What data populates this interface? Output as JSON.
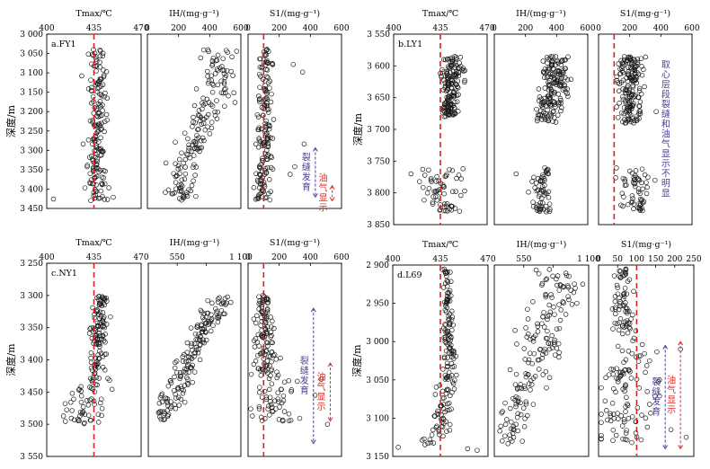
{
  "colors": {
    "frame": "#000000",
    "dash": "#e02020",
    "fracture": "#4a3f8f",
    "oil": "#d9312b",
    "point": "#1a1a1a"
  },
  "chart_data": [
    {
      "type": "scatter",
      "panel_label": "a.FY1",
      "depth_label": "深度/m",
      "depth_ticks": [
        "3 000",
        "3 050",
        "3 100",
        "3 150",
        "3 200",
        "3 250",
        "3 300",
        "3 350",
        "3 400",
        "3 450"
      ],
      "ylim": [
        3000,
        3460
      ],
      "subplots": [
        {
          "xlabel": "Tmax/℃",
          "xlim": [
            400,
            470
          ],
          "ticks": [
            400,
            435,
            470
          ],
          "dashed_at": 435,
          "trend": [
            {
              "y": 3040,
              "x": 437,
              "sx": 3
            },
            {
              "y": 3100,
              "x": 438,
              "sx": 3
            },
            {
              "y": 3200,
              "x": 438,
              "sx": 3
            },
            {
              "y": 3300,
              "x": 437,
              "sx": 3
            },
            {
              "y": 3380,
              "x": 439,
              "sx": 4
            },
            {
              "y": 3440,
              "x": 438,
              "sx": 5
            }
          ],
          "outliers": [
            {
              "x": 426,
              "y": 3110
            },
            {
              "x": 427,
              "y": 3290
            },
            {
              "x": 405,
              "y": 3435
            },
            {
              "x": 430,
              "y": 3350
            }
          ]
        },
        {
          "xlabel": "IH/(mg·g⁻¹)",
          "xlim": [
            0,
            600
          ],
          "ticks": [
            0,
            200,
            400,
            600
          ],
          "trend": [
            {
              "y": 3040,
              "x": 480,
              "sx": 55
            },
            {
              "y": 3150,
              "x": 430,
              "sx": 60
            },
            {
              "y": 3250,
              "x": 340,
              "sx": 60
            },
            {
              "y": 3350,
              "x": 250,
              "sx": 55
            },
            {
              "y": 3440,
              "x": 220,
              "sx": 40
            }
          ],
          "outliers": []
        },
        {
          "xlabel": "S1/(mg·g⁻¹)",
          "xlim": [
            0,
            600
          ],
          "ticks": [
            0,
            200,
            400,
            600
          ],
          "dashed_at": 100,
          "trend": [
            {
              "y": 3040,
              "x": 110,
              "sx": 22
            },
            {
              "y": 3200,
              "x": 110,
              "sx": 25
            },
            {
              "y": 3350,
              "x": 100,
              "sx": 25
            },
            {
              "y": 3440,
              "x": 90,
              "sx": 30
            }
          ],
          "outliers": [
            {
              "x": 290,
              "y": 3080
            },
            {
              "x": 350,
              "y": 3100
            },
            {
              "x": 360,
              "y": 3290
            },
            {
              "x": 300,
              "y": 3350
            },
            {
              "x": 270,
              "y": 3370
            }
          ],
          "annotations": [
            {
              "text": "裂缝发育",
              "kind": "fracture",
              "at": 0.72,
              "from": 3300,
              "to": 3430
            },
            {
              "text": "油气显示",
              "kind": "oil",
              "at": 0.9,
              "from": 3400,
              "to": 3440
            }
          ]
        }
      ]
    },
    {
      "type": "scatter",
      "panel_label": "b.LY1",
      "depth_label": "深度/m",
      "depth_ticks": [
        "3 550",
        "3 600",
        "3 650",
        "3 700",
        "3 750",
        "3 800",
        "3 850"
      ],
      "ylim": [
        3550,
        3850
      ],
      "subplots": [
        {
          "xlabel": "Tmax/℃",
          "xlim": [
            400,
            470
          ],
          "ticks": [
            400,
            435,
            470
          ],
          "dashed_at": 435,
          "trend": [
            {
              "y": 3585,
              "x": 444,
              "sx": 4
            },
            {
              "y": 3630,
              "x": 443,
              "sx": 4
            },
            {
              "y": 3680,
              "x": 442,
              "sx": 3
            }
          ],
          "trend2": [
            {
              "y": 3760,
              "x": 432,
              "sx": 8
            },
            {
              "y": 3800,
              "x": 436,
              "sx": 7
            },
            {
              "y": 3830,
              "x": 440,
              "sx": 5
            }
          ],
          "outliers": [
            {
              "x": 413,
              "y": 3770
            }
          ]
        },
        {
          "xlabel": "IH/(mg·g⁻¹)",
          "xlim": [
            0,
            600
          ],
          "ticks": [
            0,
            200,
            400,
            600
          ],
          "trend": [
            {
              "y": 3585,
              "x": 400,
              "sx": 40
            },
            {
              "y": 3640,
              "x": 390,
              "sx": 45
            },
            {
              "y": 3690,
              "x": 330,
              "sx": 40
            }
          ],
          "trend2": [
            {
              "y": 3760,
              "x": 320,
              "sx": 35
            },
            {
              "y": 3800,
              "x": 300,
              "sx": 40
            },
            {
              "y": 3830,
              "x": 310,
              "sx": 30
            }
          ],
          "outliers": [
            {
              "x": 140,
              "y": 3770
            }
          ]
        },
        {
          "xlabel": "S1/(mg·g⁻¹)",
          "xlim": [
            0,
            600
          ],
          "ticks": [
            0,
            200,
            400,
            600
          ],
          "dashed_at": 100,
          "trend": [
            {
              "y": 3585,
              "x": 210,
              "sx": 40
            },
            {
              "y": 3640,
              "x": 200,
              "sx": 45
            },
            {
              "y": 3690,
              "x": 210,
              "sx": 40
            }
          ],
          "trend2": [
            {
              "y": 3760,
              "x": 210,
              "sx": 40
            },
            {
              "y": 3800,
              "x": 250,
              "sx": 50
            },
            {
              "y": 3830,
              "x": 230,
              "sx": 40
            }
          ],
          "outliers": [
            {
              "x": 370,
              "y": 3672
            }
          ],
          "annotations": [
            {
              "text": "取心层段裂缝和油气显示不明显",
              "kind": "fracture",
              "at": 0.72,
              "vertical_text_only": true
            }
          ]
        }
      ]
    },
    {
      "type": "scatter",
      "panel_label": "c.NY1",
      "depth_label": "深度/m",
      "depth_ticks": [
        "3 250",
        "3 300",
        "3 350",
        "3 400",
        "3 450",
        "3 500",
        "3 550"
      ],
      "ylim": [
        3250,
        3550
      ],
      "subplots": [
        {
          "xlabel": "Tmax/℃",
          "xlim": [
            400,
            470
          ],
          "ticks": [
            400,
            435,
            470
          ],
          "dashed_at": 435,
          "trend": [
            {
              "y": 3300,
              "x": 440,
              "sx": 3
            },
            {
              "y": 3380,
              "x": 439,
              "sx": 3
            },
            {
              "y": 3430,
              "x": 437,
              "sx": 4
            },
            {
              "y": 3480,
              "x": 427,
              "sx": 8
            },
            {
              "y": 3500,
              "x": 425,
              "sx": 8
            }
          ],
          "outliers": []
        },
        {
          "xlabel": "IH/(mg·g⁻¹)",
          "xlim": [
            300,
            1100
          ],
          "ticks": [
            300,
            550,
            800,
            1100
          ],
          "tick_labels": [
            "",
            "550",
            "",
            "1 100"
          ],
          "trend": [
            {
              "y": 3300,
              "x": 930,
              "sx": 60
            },
            {
              "y": 3350,
              "x": 780,
              "sx": 60
            },
            {
              "y": 3400,
              "x": 660,
              "sx": 60
            },
            {
              "y": 3450,
              "x": 520,
              "sx": 60
            },
            {
              "y": 3495,
              "x": 420,
              "sx": 40
            }
          ],
          "outliers": []
        },
        {
          "xlabel": "S1/(mg·g⁻¹)",
          "xlim": [
            0,
            600
          ],
          "ticks": [
            0,
            200,
            400,
            600
          ],
          "dashed_at": 100,
          "trend": [
            {
              "y": 3300,
              "x": 100,
              "sx": 20
            },
            {
              "y": 3400,
              "x": 110,
              "sx": 35
            },
            {
              "y": 3450,
              "x": 170,
              "sx": 70
            },
            {
              "y": 3495,
              "x": 180,
              "sx": 90
            }
          ],
          "outliers": [
            {
              "x": 430,
              "y": 3455
            },
            {
              "x": 510,
              "y": 3500
            },
            {
              "x": 470,
              "y": 3430
            }
          ],
          "annotations": [
            {
              "text": "裂缝发育",
              "kind": "fracture",
              "at": 0.7,
              "from": 3320,
              "to": 3530
            },
            {
              "text": "油气显示",
              "kind": "oil",
              "at": 0.88,
              "from": 3405,
              "to": 3495
            }
          ]
        }
      ]
    },
    {
      "type": "scatter",
      "panel_label": "d.L69",
      "depth_label": "深度/m",
      "depth_ticks": [
        "2 900",
        "2 950",
        "3 000",
        "3 050",
        "3 100",
        "3 150"
      ],
      "ylim": [
        2900,
        3150
      ],
      "subplots": [
        {
          "xlabel": "Tmax/℃",
          "xlim": [
            400,
            470
          ],
          "ticks": [
            400,
            435,
            470
          ],
          "dashed_at": 435,
          "trend": [
            {
              "y": 2905,
              "x": 440,
              "sx": 2
            },
            {
              "y": 3000,
              "x": 441,
              "sx": 2
            },
            {
              "y": 3050,
              "x": 441,
              "sx": 3
            },
            {
              "y": 3100,
              "x": 436,
              "sx": 4
            },
            {
              "y": 3135,
              "x": 430,
              "sx": 6
            }
          ],
          "outliers": [
            {
              "x": 455,
              "y": 3140
            },
            {
              "x": 462,
              "y": 3142
            },
            {
              "x": 404,
              "y": 3138
            }
          ]
        },
        {
          "xlabel": "IH/(mg·g⁻¹)",
          "xlim": [
            300,
            1100
          ],
          "ticks": [
            300,
            550,
            800,
            1100
          ],
          "tick_labels": [
            "",
            "550",
            "",
            "1 100"
          ],
          "trend": [
            {
              "y": 2905,
              "x": 850,
              "sx": 100
            },
            {
              "y": 2960,
              "x": 780,
              "sx": 100
            },
            {
              "y": 3010,
              "x": 700,
              "sx": 100
            },
            {
              "y": 3060,
              "x": 580,
              "sx": 80
            },
            {
              "y": 3110,
              "x": 470,
              "sx": 70
            },
            {
              "y": 3135,
              "x": 400,
              "sx": 50
            }
          ],
          "outliers": [
            {
              "x": 1050,
              "y": 2925
            },
            {
              "x": 1000,
              "y": 2950
            }
          ]
        },
        {
          "xlabel": "S1/(mg·g⁻¹)",
          "xlim": [
            0,
            250
          ],
          "ticks": [
            0,
            50,
            100,
            150,
            200,
            250
          ],
          "dashed_at": 100,
          "trend": [
            {
              "y": 2905,
              "x": 60,
              "sx": 12
            },
            {
              "y": 2990,
              "x": 70,
              "sx": 15
            },
            {
              "y": 3010,
              "x": 105,
              "sx": 30
            },
            {
              "y": 3060,
              "x": 55,
              "sx": 35
            },
            {
              "y": 3110,
              "x": 60,
              "sx": 40
            },
            {
              "y": 3135,
              "x": 70,
              "sx": 45
            }
          ],
          "outliers": [
            {
              "x": 215,
              "y": 3010
            },
            {
              "x": 190,
              "y": 3115
            },
            {
              "x": 230,
              "y": 3125
            },
            {
              "x": 160,
              "y": 3050
            }
          ],
          "annotations": [
            {
              "text": "裂缝发育",
              "kind": "fracture",
              "at": 0.7,
              "from": 3005,
              "to": 3140
            },
            {
              "text": "油气显示",
              "kind": "oil",
              "at": 0.86,
              "from": 3000,
              "to": 3140
            }
          ]
        }
      ]
    }
  ]
}
